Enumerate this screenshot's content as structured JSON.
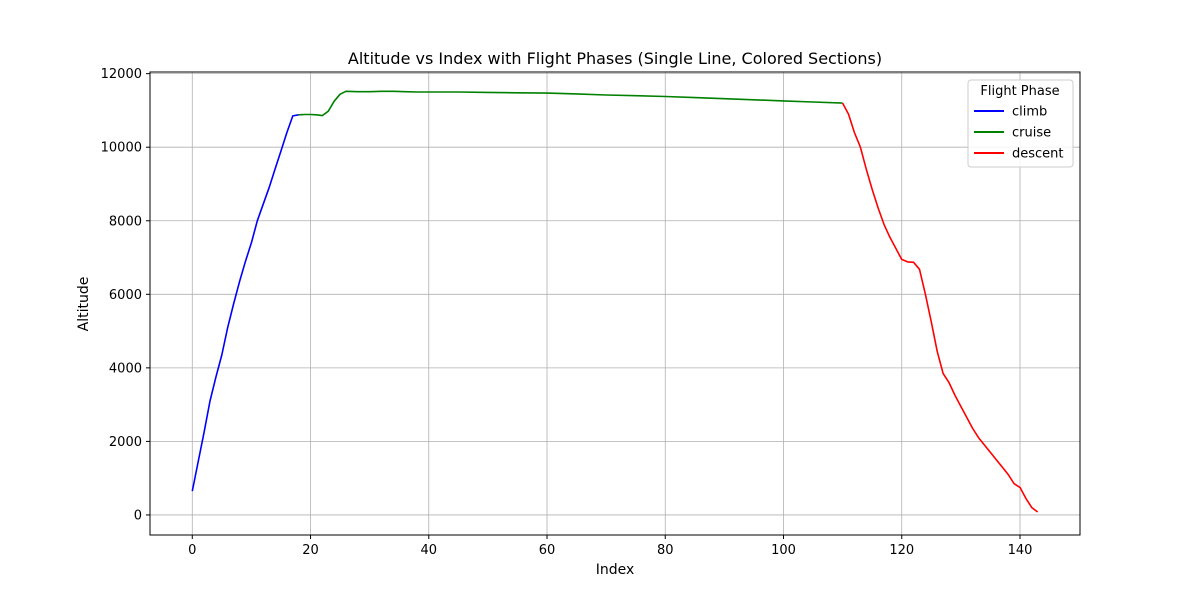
{
  "chart_data": {
    "type": "line",
    "title": "Altitude vs Index with Flight Phases (Single Line, Colored Sections)",
    "xlabel": "Index",
    "ylabel": "Altitude",
    "xlim": [
      -7.15,
      150.15
    ],
    "ylim": [
      -545,
      12045
    ],
    "xticks": [
      0,
      20,
      40,
      60,
      80,
      100,
      120,
      140
    ],
    "yticks": [
      0,
      2000,
      4000,
      6000,
      8000,
      10000,
      12000
    ],
    "grid": true,
    "legend": {
      "title": "Flight Phase",
      "placement": "top-right",
      "entries": [
        "climb",
        "cruise",
        "descent"
      ]
    },
    "series": [
      {
        "name": "climb",
        "color": "#0000ff",
        "x": [
          0,
          1,
          2,
          3,
          4,
          5,
          6,
          7,
          8,
          9,
          10,
          11,
          12,
          13,
          14,
          15,
          16,
          17,
          18
        ],
        "y": [
          650,
          1450,
          2250,
          3100,
          3750,
          4350,
          5100,
          5750,
          6350,
          6900,
          7400,
          8000,
          8450,
          8900,
          9400,
          9900,
          10400,
          10850,
          10880
        ]
      },
      {
        "name": "cruise",
        "color": "#008000",
        "x": [
          18,
          19,
          20,
          21,
          22,
          23,
          24,
          25,
          26,
          28,
          30,
          32,
          34,
          36,
          38,
          40,
          45,
          50,
          55,
          60,
          65,
          70,
          75,
          80,
          85,
          90,
          95,
          100,
          105,
          110
        ],
        "y": [
          10880,
          10890,
          10890,
          10880,
          10860,
          10980,
          11250,
          11440,
          11520,
          11510,
          11510,
          11520,
          11520,
          11510,
          11500,
          11500,
          11500,
          11490,
          11480,
          11470,
          11450,
          11420,
          11400,
          11380,
          11350,
          11320,
          11290,
          11260,
          11230,
          11200
        ]
      },
      {
        "name": "descent",
        "color": "#ff0000",
        "x": [
          110,
          111,
          112,
          113,
          114,
          115,
          116,
          117,
          118,
          119,
          120,
          121,
          122,
          123,
          124,
          125,
          126,
          127,
          128,
          129,
          130,
          131,
          132,
          133,
          134,
          135,
          136,
          137,
          138,
          139,
          140,
          141,
          142,
          143
        ],
        "y": [
          11200,
          10900,
          10400,
          10000,
          9400,
          8850,
          8350,
          7900,
          7550,
          7250,
          6950,
          6880,
          6870,
          6680,
          6000,
          5250,
          4450,
          3850,
          3600,
          3250,
          2950,
          2650,
          2350,
          2100,
          1900,
          1700,
          1500,
          1300,
          1100,
          850,
          750,
          450,
          200,
          80
        ]
      }
    ]
  }
}
